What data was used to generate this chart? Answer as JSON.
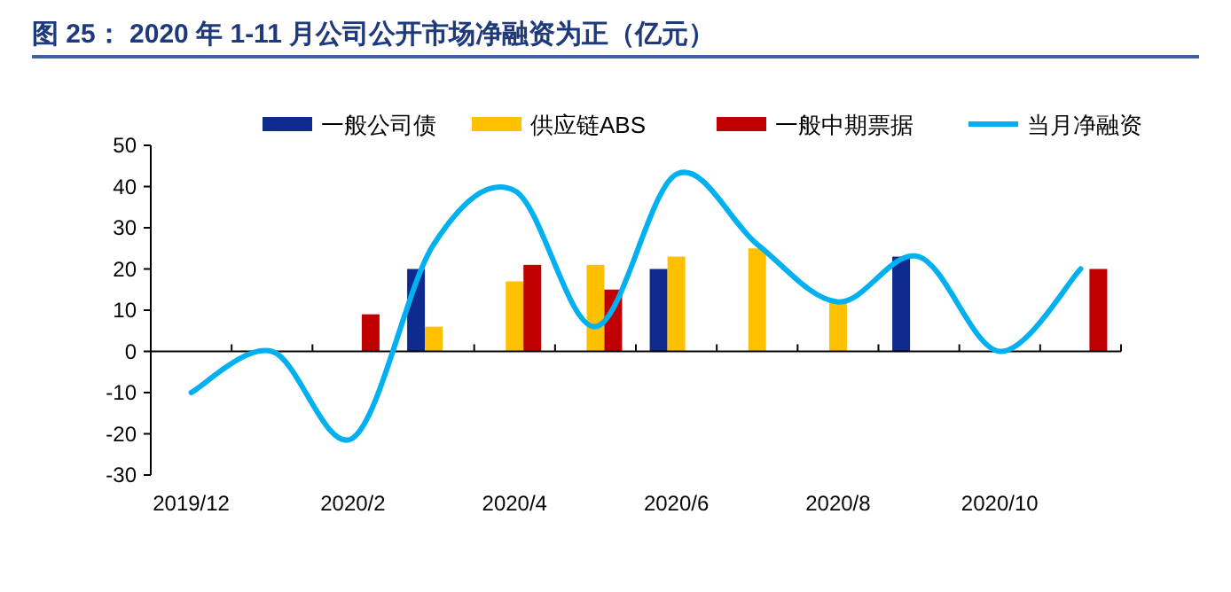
{
  "chart_data": {
    "type": "bar",
    "title": "图 25：  2020 年 1-11 月公司公开市场净融资为正（亿元）",
    "categories": [
      "2019/12",
      null,
      "2020/2",
      null,
      "2020/4",
      null,
      "2020/6",
      null,
      "2020/8",
      null,
      "2020/10",
      null
    ],
    "series": [
      {
        "name": "一般公司债",
        "color": "#0f2a8f",
        "values": [
          null,
          null,
          null,
          20,
          null,
          null,
          20,
          null,
          null,
          23,
          null,
          null
        ]
      },
      {
        "name": "供应链ABS",
        "color": "#ffc000",
        "values": [
          null,
          null,
          null,
          6,
          17,
          21,
          23,
          25,
          12,
          null,
          null,
          null
        ]
      },
      {
        "name": "一般中期票据",
        "color": "#c00000",
        "values": [
          null,
          null,
          9,
          null,
          21,
          15,
          null,
          null,
          null,
          null,
          null,
          20
        ]
      },
      {
        "name": "当月净融资",
        "color": "#00b0f0",
        "type": "line",
        "values": [
          -10,
          0,
          -21,
          26,
          39,
          6,
          43,
          26,
          12,
          23,
          0,
          20
        ]
      }
    ],
    "ylim": [
      -30,
      50
    ],
    "yticks": [
      -30,
      -20,
      -10,
      0,
      10,
      20,
      30,
      40,
      50
    ],
    "legend": "top"
  }
}
